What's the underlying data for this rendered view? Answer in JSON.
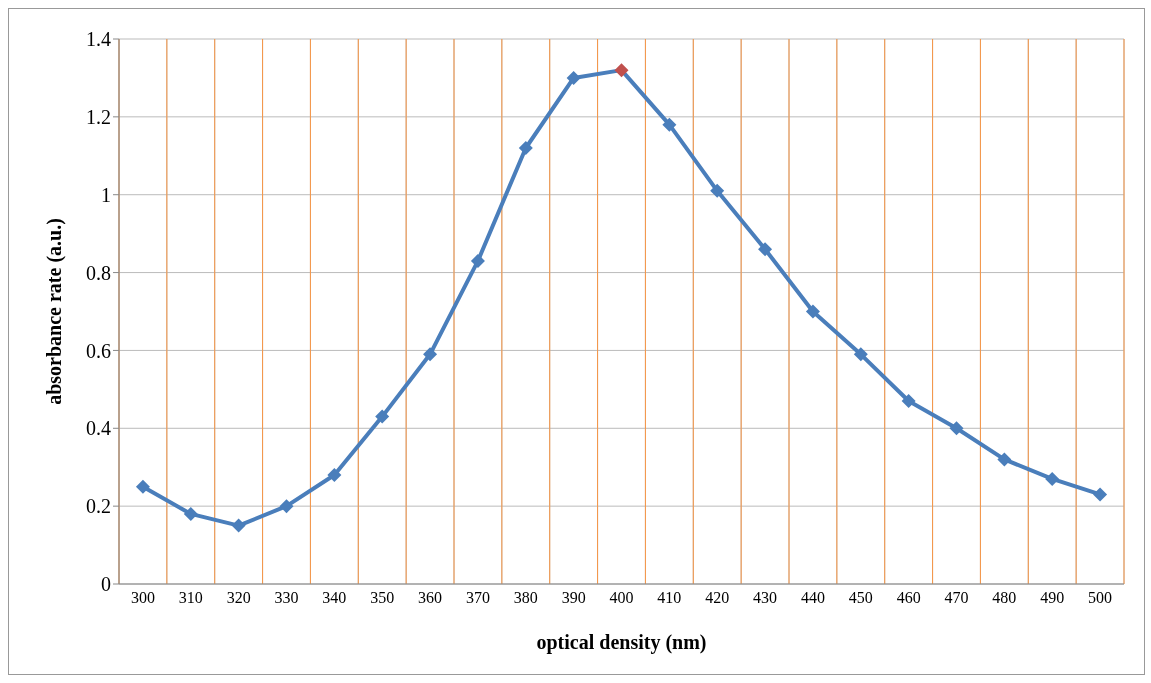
{
  "chart_data": {
    "type": "line",
    "xlabel": "optical density (nm)",
    "ylabel": "absorbance rate (a.u.)",
    "categories": [
      "300",
      "310",
      "320",
      "330",
      "340",
      "350",
      "360",
      "370",
      "380",
      "390",
      "400",
      "410",
      "420",
      "430",
      "440",
      "450",
      "460",
      "470",
      "480",
      "490",
      "500"
    ],
    "series": [
      {
        "color": "#4a7ebb",
        "colors": [
          "#4a7ebb",
          "#4a7ebb",
          "#4a7ebb",
          "#4a7ebb",
          "#4a7ebb",
          "#4a7ebb",
          "#4a7ebb",
          "#4a7ebb",
          "#4a7ebb",
          "#4a7ebb",
          "#c0504d",
          "#4a7ebb",
          "#4a7ebb",
          "#4a7ebb",
          "#4a7ebb",
          "#4a7ebb",
          "#4a7ebb",
          "#4a7ebb",
          "#4a7ebb",
          "#4a7ebb",
          "#4a7ebb"
        ],
        "values": [
          0.25,
          0.18,
          0.15,
          0.2,
          0.28,
          0.43,
          0.59,
          0.83,
          1.12,
          1.3,
          1.32,
          1.18,
          1.01,
          0.86,
          0.7,
          0.59,
          0.47,
          0.4,
          0.32,
          0.27,
          0.23
        ]
      }
    ],
    "ylim": [
      0,
      1.4
    ],
    "yticks": [
      0,
      0.2,
      0.4,
      0.6,
      0.8,
      1,
      1.2,
      1.4
    ],
    "grid": true,
    "marker": "diamond",
    "line_style": "solid"
  }
}
